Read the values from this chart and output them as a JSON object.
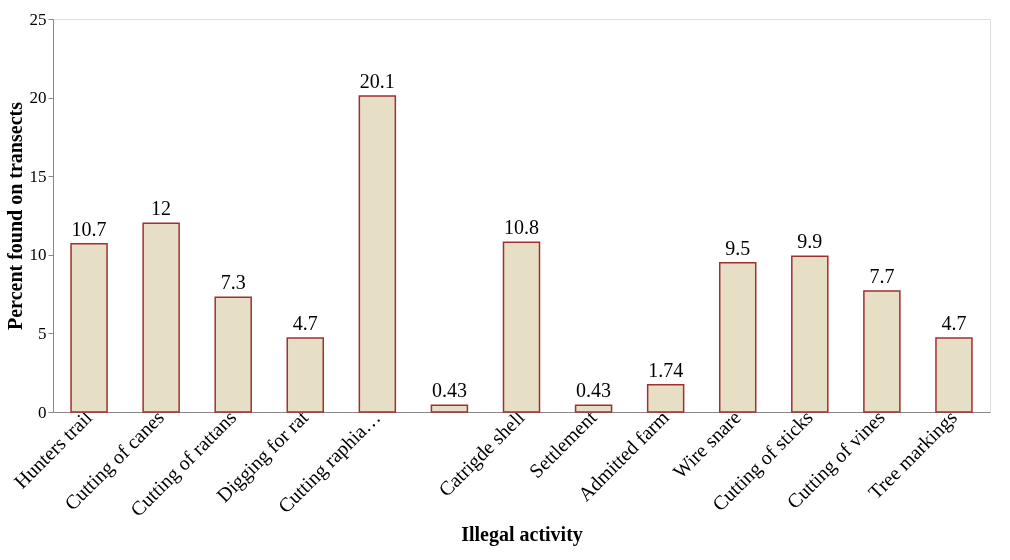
{
  "chart_data": {
    "type": "bar",
    "xlabel": "Illegal activity",
    "ylabel": "Percent found on transects",
    "categories": [
      "Hunters trail",
      "Cutting of canes",
      "Cutting of rattans",
      "Digging for rat",
      "Cutting raphia…",
      null,
      "Catrigde shell",
      "Settlement",
      "Admitted farm",
      "Wire snare",
      "Cutting of sticks",
      "Cutting of vines",
      "Tree markings"
    ],
    "values": [
      10.7,
      12,
      7.3,
      4.7,
      20.1,
      0.43,
      10.8,
      0.43,
      1.74,
      9.5,
      9.9,
      7.7,
      4.7
    ],
    "color": "#e6dfc6",
    "ylim": [
      0,
      25
    ],
    "yticks": [
      0,
      5,
      10,
      15,
      20,
      25
    ],
    "grid": false,
    "data_labels": true
  }
}
